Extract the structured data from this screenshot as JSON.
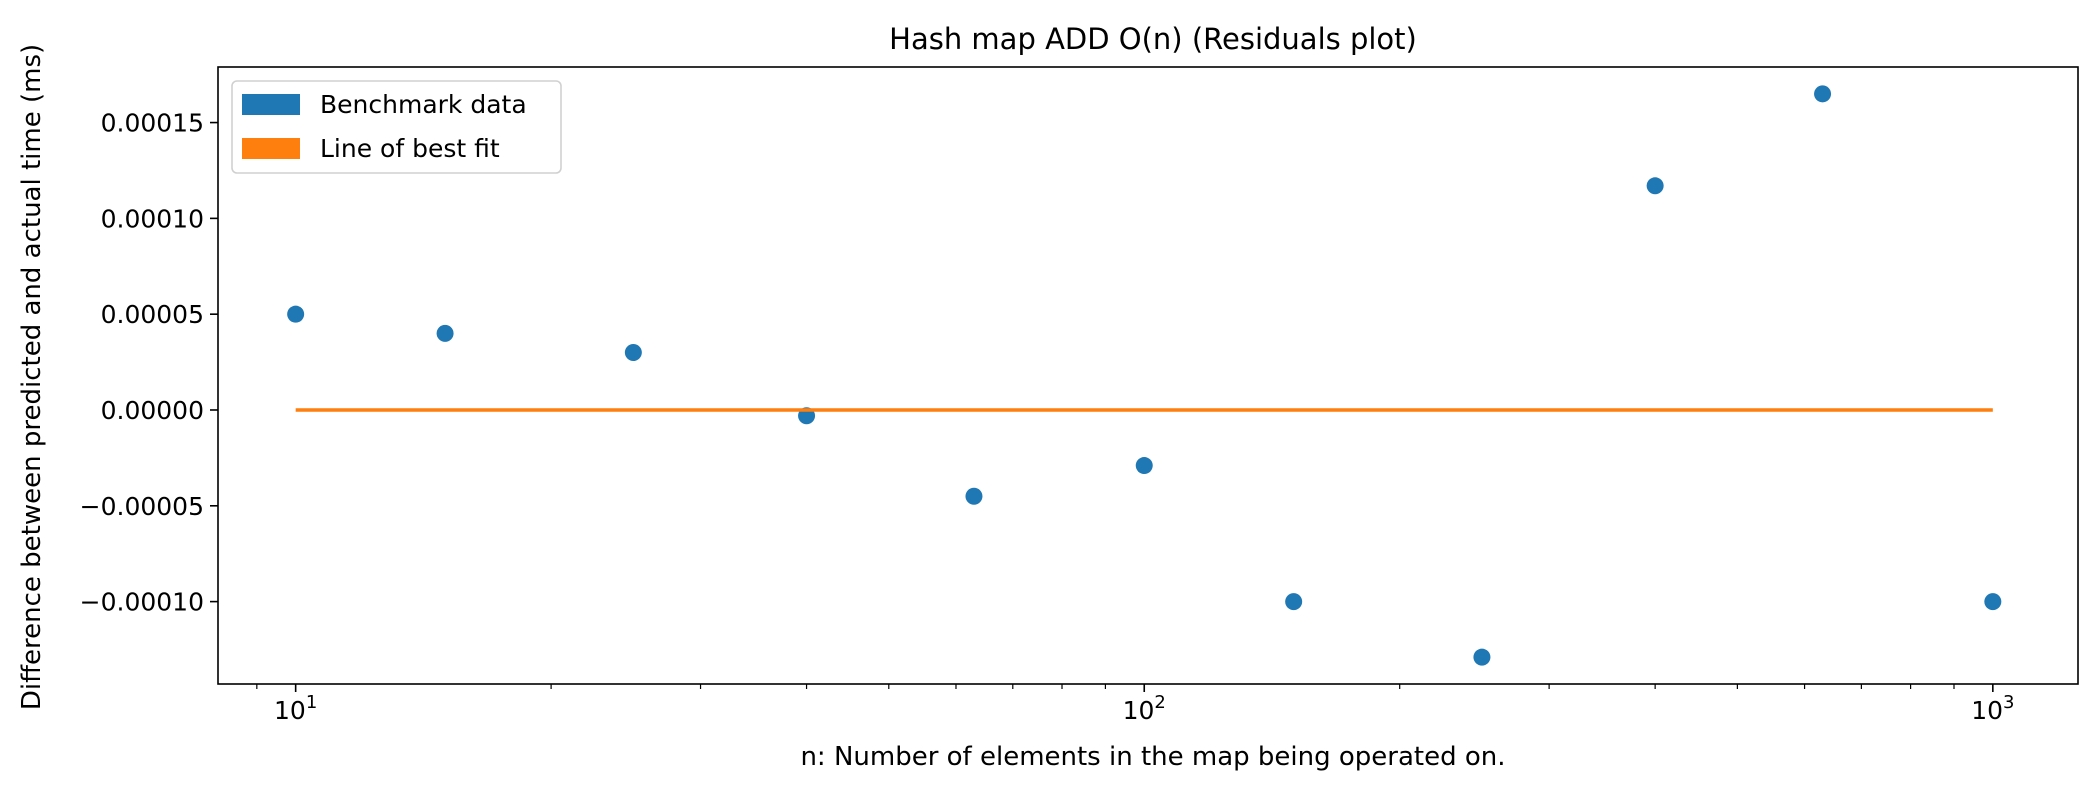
{
  "chart_data": {
    "type": "scatter",
    "title": "Hash map ADD O(n)  (Residuals plot)",
    "xlabel": "n: Number of elements in the map being operated on.",
    "ylabel": "Difference between predicted and actual time (ms)",
    "x_scale": "log",
    "xlim": [
      8.1,
      1260
    ],
    "ylim": [
      -0.000143,
      0.000179
    ],
    "x_ticks": [
      {
        "value": 10,
        "base": "10",
        "exp": "1"
      },
      {
        "value": 100,
        "base": "10",
        "exp": "2"
      },
      {
        "value": 1000,
        "base": "10",
        "exp": "3"
      }
    ],
    "y_ticks": [
      {
        "value": 0.00015,
        "label": "0.00015"
      },
      {
        "value": 0.0001,
        "label": "0.00010"
      },
      {
        "value": 5e-05,
        "label": "0.00005"
      },
      {
        "value": 0,
        "label": "0.00000"
      },
      {
        "value": -5e-05,
        "label": "−0.00005"
      },
      {
        "value": -0.0001,
        "label": "−0.00010"
      }
    ],
    "grid": false,
    "legend_position": "top-left",
    "legend": [
      {
        "label": "Benchmark data",
        "color": "#1f77b4"
      },
      {
        "label": "Line of best fit",
        "color": "#ff7f0e"
      }
    ],
    "series": [
      {
        "name": "Benchmark data",
        "kind": "scatter",
        "color": "#1f77b4",
        "x": [
          10,
          15,
          25,
          40,
          63,
          100,
          150,
          250,
          400,
          630,
          1000
        ],
        "y": [
          5e-05,
          4e-05,
          3e-05,
          -3e-06,
          -4.5e-05,
          -2.9e-05,
          -0.0001,
          -0.000129,
          0.000117,
          0.000165,
          -0.0001
        ]
      },
      {
        "name": "Line of best fit",
        "kind": "line",
        "color": "#ff7f0e",
        "x": [
          10,
          1000
        ],
        "y": [
          0,
          0
        ]
      }
    ]
  }
}
